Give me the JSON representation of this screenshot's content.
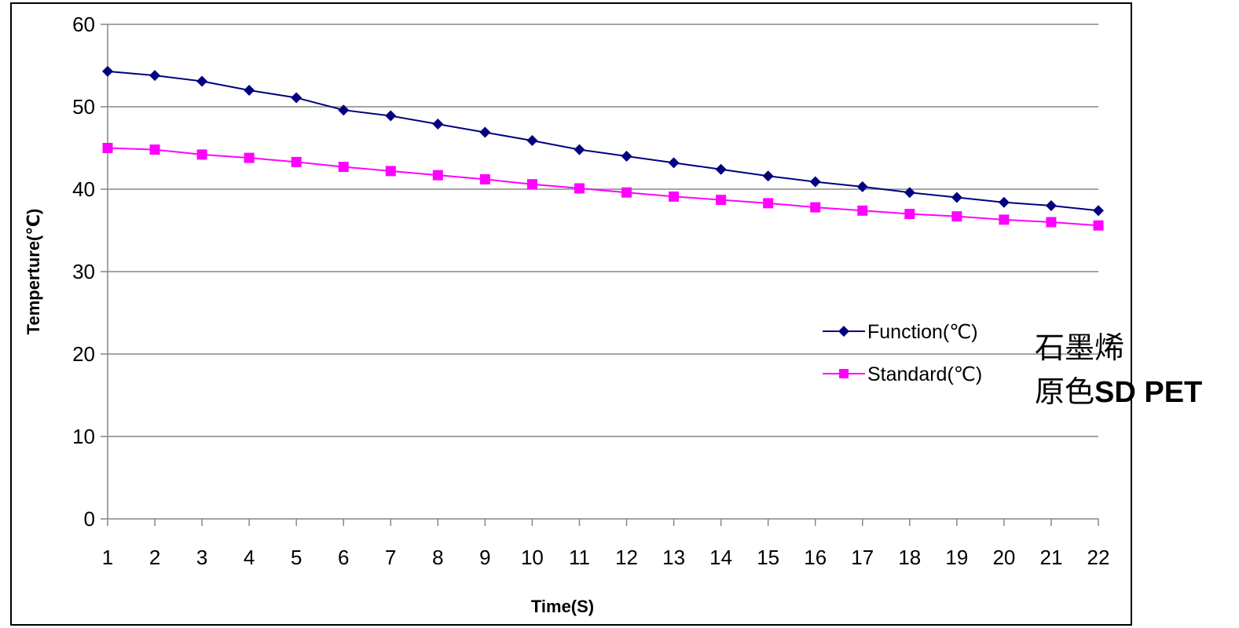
{
  "chart_data": {
    "type": "line",
    "xlabel": "Time(S)",
    "ylabel": "Temperture(℃)",
    "ylim": [
      0,
      60
    ],
    "yticks": [
      0,
      10,
      20,
      30,
      40,
      50,
      60
    ],
    "categories": [
      "1",
      "2",
      "3",
      "4",
      "5",
      "6",
      "7",
      "8",
      "9",
      "10",
      "11",
      "12",
      "13",
      "14",
      "15",
      "16",
      "17",
      "18",
      "19",
      "20",
      "21",
      "22"
    ],
    "grid": "horizontal",
    "legend_position": "right",
    "series": [
      {
        "name": "Function(℃)",
        "color": "#000080",
        "marker": "diamond",
        "values": [
          54.3,
          53.8,
          53.1,
          52.0,
          51.1,
          49.6,
          48.9,
          47.9,
          46.9,
          45.9,
          44.8,
          44.0,
          43.2,
          42.4,
          41.6,
          40.9,
          40.3,
          39.6,
          39.0,
          38.4,
          38.0,
          37.4
        ]
      },
      {
        "name": "Standard(℃)",
        "color": "#FF00FF",
        "marker": "square",
        "values": [
          45.0,
          44.8,
          44.2,
          43.8,
          43.3,
          42.7,
          42.2,
          41.7,
          41.2,
          40.6,
          40.1,
          39.6,
          39.1,
          38.7,
          38.3,
          37.8,
          37.4,
          37.0,
          36.7,
          36.3,
          36.0,
          35.6
        ]
      }
    ],
    "annotations": {
      "line1": "石墨烯",
      "line2_prefix": "原色",
      "line2_suffix": "SD PET"
    }
  }
}
